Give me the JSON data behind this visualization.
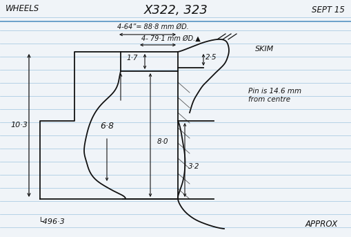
{
  "title": "X322, 323",
  "subtitle_left": "WHEELS",
  "subtitle_right": "SEPT 15",
  "dim1": "4-64”= 88·8 mm ØD.",
  "dim2": "4- 79·1 mm ØD.▲",
  "label_skim": "SKIM",
  "label_pin": "Pin is 14.6 mm\nfrom centre",
  "label_approx": "APPROX",
  "label_496": "└496·3",
  "dim_103": "10·3",
  "dim_17": "1·7",
  "dim_68": "6·8",
  "dim_80": "8·0",
  "dim_32": "3·2",
  "dim_25": "2·5",
  "bg_color": "#f0f4f8",
  "line_color": "#111111",
  "ruled_line_color": "#88b8d8",
  "paper_color": "#f0f4f8"
}
